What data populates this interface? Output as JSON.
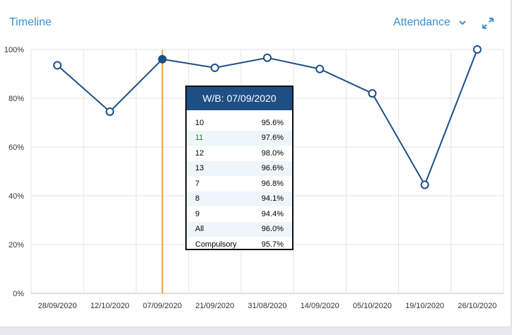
{
  "header": {
    "title": "Timeline",
    "metric_label": "Attendance"
  },
  "icons": {
    "dropdown": "chevron-down-icon",
    "expand": "expand-arrows-icon"
  },
  "colors": {
    "accent": "#3a8fcf",
    "line": "#1d4f85",
    "crosshair": "#f0a030",
    "tooltip_header": "#1d4f85"
  },
  "chart_data": {
    "type": "line",
    "categories": [
      "28/09/2020",
      "12/10/2020",
      "07/09/2020",
      "21/09/2020",
      "31/08/2020",
      "14/09/2020",
      "05/10/2020",
      "19/10/2020",
      "26/10/2020"
    ],
    "series": [
      {
        "values": [
          93.5,
          74.5,
          96.0,
          92.5,
          96.6,
          92.0,
          82.0,
          44.5,
          100.0
        ]
      }
    ],
    "y_ticks": [
      "0%",
      "20%",
      "40%",
      "60%",
      "80%",
      "100%"
    ],
    "ylim": [
      0,
      100
    ],
    "grid": true,
    "highlight_index": 2
  },
  "tooltip": {
    "title": "W/B:  07/09/2020",
    "rows": [
      {
        "label": "10",
        "value": "95.6%"
      },
      {
        "label": "11",
        "value": "97.6%"
      },
      {
        "label": "12",
        "value": "98.0%"
      },
      {
        "label": "13",
        "value": "96.6%"
      },
      {
        "label": "7",
        "value": "96.8%"
      },
      {
        "label": "8",
        "value": "94.1%"
      },
      {
        "label": "9",
        "value": "94.4%"
      },
      {
        "label": "All",
        "value": "96.0%"
      },
      {
        "label": "Compulsory",
        "value": "95.7%"
      }
    ]
  }
}
